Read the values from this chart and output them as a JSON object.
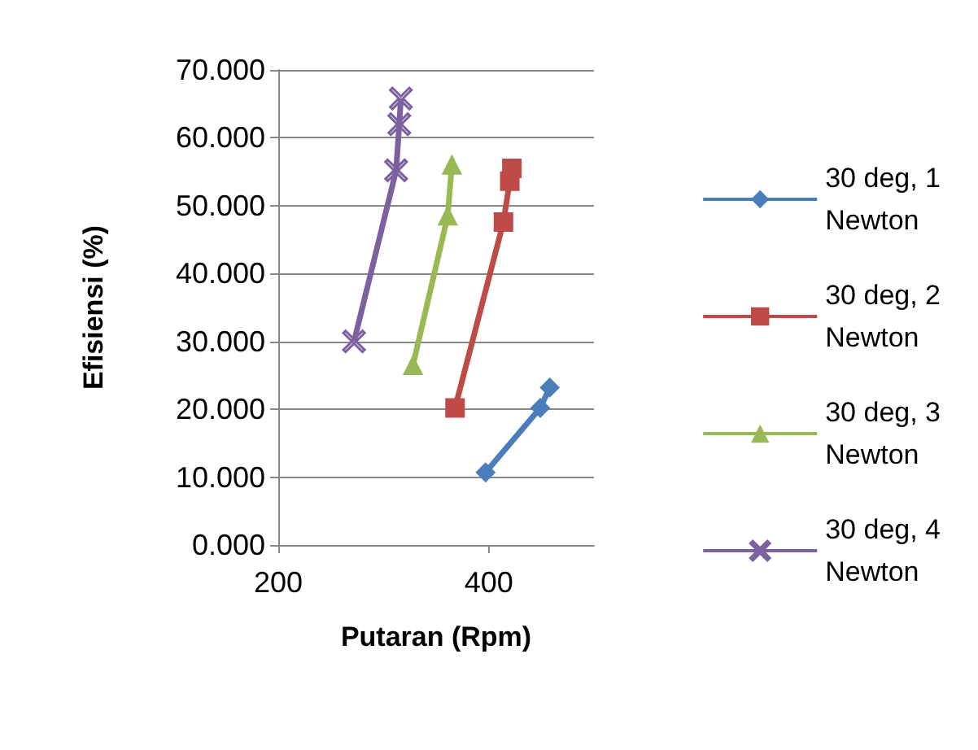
{
  "chart_data": {
    "type": "line",
    "xlabel": "Putaran (Rpm)",
    "ylabel": "Efisiensi (%)",
    "xlim": [
      200,
      500
    ],
    "xticks": [
      200,
      400
    ],
    "ylim": [
      0,
      70
    ],
    "yticks": [
      {
        "value": 0,
        "label": "0.000"
      },
      {
        "value": 10,
        "label": "10.000"
      },
      {
        "value": 20,
        "label": "20.000"
      },
      {
        "value": 30,
        "label": "30.000"
      },
      {
        "value": 40,
        "label": "40.000"
      },
      {
        "value": 50,
        "label": "50.000"
      },
      {
        "value": 60,
        "label": "60.000"
      },
      {
        "value": 70,
        "label": "70.000"
      }
    ],
    "grid": "y",
    "legend": "right",
    "series": [
      {
        "name": "30 deg, 1 Newton",
        "color": "#4a7ebb",
        "marker": "diamond",
        "x": [
          397,
          449,
          458
        ],
        "values": [
          10.7,
          20.2,
          23.2
        ]
      },
      {
        "name": "30 deg, 2 Newton",
        "color": "#be4b48",
        "marker": "square",
        "x": [
          368,
          414,
          420,
          422
        ],
        "values": [
          20.2,
          47.6,
          53.6,
          55.5
        ]
      },
      {
        "name": "30 deg, 3 Newton",
        "color": "#98b954",
        "marker": "triangle",
        "x": [
          328,
          361,
          365
        ],
        "values": [
          26.5,
          48.5,
          56
        ]
      },
      {
        "name": "30 deg, 4 Newton",
        "color": "#7d60a0",
        "marker": "cross",
        "x": [
          272,
          312,
          315,
          316.5
        ],
        "values": [
          30,
          55.2,
          62,
          65.8
        ]
      }
    ]
  }
}
